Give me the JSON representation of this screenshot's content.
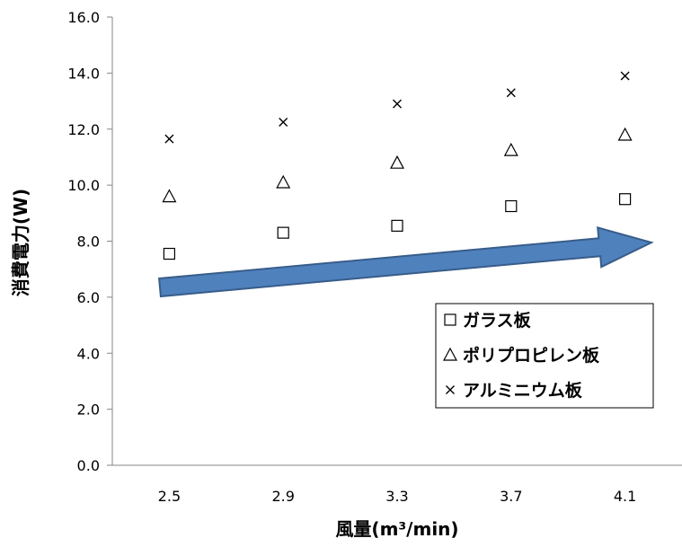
{
  "chart_data": {
    "type": "scatter",
    "title": "",
    "xlabel": "風量(m³/min)",
    "ylabel": "消費電力(W)",
    "categories": [
      "2.5",
      "2.9",
      "3.3",
      "3.7",
      "4.1"
    ],
    "ylim": [
      0,
      16
    ],
    "yticks": [
      "0.0",
      "2.0",
      "4.0",
      "6.0",
      "8.0",
      "10.0",
      "12.0",
      "14.0",
      "16.0"
    ],
    "grid": false,
    "legend_position": "bottom-right",
    "series": [
      {
        "name": "ガラス板",
        "marker": "square",
        "values": [
          7.55,
          8.3,
          8.55,
          9.25,
          9.5
        ]
      },
      {
        "name": "ポリプロピレン板",
        "marker": "triangle",
        "values": [
          9.6,
          10.1,
          10.8,
          11.25,
          11.8
        ]
      },
      {
        "name": "アルミニウム板",
        "marker": "cross",
        "values": [
          11.65,
          12.25,
          12.9,
          13.3,
          13.9
        ]
      }
    ],
    "annotation": {
      "type": "arrow",
      "color": "#4f81bd",
      "border": "#385d8a"
    }
  }
}
